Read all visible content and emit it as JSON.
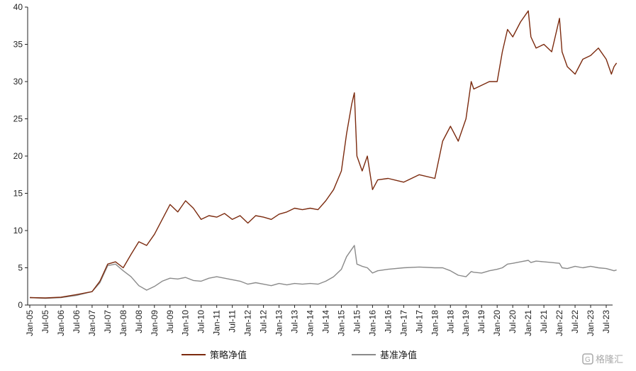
{
  "chart_data": {
    "type": "line",
    "title": "",
    "xlabel": "",
    "ylabel": "",
    "ylim": [
      0,
      40
    ],
    "yticks": [
      0,
      5,
      10,
      15,
      20,
      25,
      30,
      35,
      40
    ],
    "x_tick_labels": [
      "Jan-05",
      "Jul-05",
      "Jan-06",
      "Jul-06",
      "Jan-07",
      "Jul-07",
      "Jan-08",
      "Jul-08",
      "Jan-09",
      "Jul-09",
      "Jan-10",
      "Jul-10",
      "Jan-11",
      "Jul-11",
      "Jan-12",
      "Jul-12",
      "Jan-13",
      "Jul-13",
      "Jan-14",
      "Jul-14",
      "Jan-15",
      "Jul-15",
      "Jan-16",
      "Jul-16",
      "Jan-17",
      "Jul-17",
      "Jan-18",
      "Jul-18",
      "Jan-19",
      "Jul-19",
      "Jan-20",
      "Jul-20",
      "Jan-21",
      "Jul-21",
      "Jan-22",
      "Jul-22",
      "Jan-23",
      "Jul-23"
    ],
    "grid": false,
    "legend_position": "bottom",
    "x_dates": [
      "2005-01",
      "2005-07",
      "2006-01",
      "2006-07",
      "2007-01",
      "2007-04",
      "2007-07",
      "2007-10",
      "2008-01",
      "2008-04",
      "2008-07",
      "2008-10",
      "2009-01",
      "2009-04",
      "2009-07",
      "2009-10",
      "2010-01",
      "2010-04",
      "2010-07",
      "2010-10",
      "2011-01",
      "2011-04",
      "2011-07",
      "2011-10",
      "2012-01",
      "2012-04",
      "2012-07",
      "2012-10",
      "2013-01",
      "2013-04",
      "2013-07",
      "2013-10",
      "2014-01",
      "2014-04",
      "2014-07",
      "2014-10",
      "2015-01",
      "2015-03",
      "2015-05",
      "2015-06",
      "2015-07",
      "2015-09",
      "2015-11",
      "2016-01",
      "2016-03",
      "2016-07",
      "2017-01",
      "2017-07",
      "2018-01",
      "2018-04",
      "2018-07",
      "2018-10",
      "2019-01",
      "2019-03",
      "2019-04",
      "2019-07",
      "2019-10",
      "2020-01",
      "2020-03",
      "2020-05",
      "2020-07",
      "2020-10",
      "2021-01",
      "2021-02",
      "2021-04",
      "2021-07",
      "2021-10",
      "2022-01",
      "2022-02",
      "2022-04",
      "2022-07",
      "2022-10",
      "2023-01",
      "2023-04",
      "2023-07",
      "2023-09",
      "2023-10",
      "2023-11"
    ],
    "series": [
      {
        "name": "策略净值",
        "color": "#7b2a0e",
        "values": [
          1.0,
          0.95,
          1.05,
          1.4,
          1.8,
          3.2,
          5.5,
          5.8,
          5.0,
          6.8,
          8.5,
          8.0,
          9.5,
          11.5,
          13.5,
          12.5,
          14.0,
          13.0,
          11.5,
          12.0,
          11.8,
          12.3,
          11.5,
          12.0,
          11.0,
          12.0,
          11.8,
          11.5,
          12.2,
          12.5,
          13.0,
          12.8,
          13.0,
          12.8,
          14.0,
          15.5,
          18.0,
          23.0,
          27.0,
          28.5,
          20.0,
          18.0,
          20.0,
          15.5,
          16.8,
          17.0,
          16.5,
          17.5,
          17.0,
          22.0,
          24.0,
          22.0,
          25.0,
          30.0,
          29.0,
          29.5,
          30.0,
          30.0,
          34.0,
          37.0,
          36.0,
          38.0,
          39.5,
          36.0,
          34.5,
          35.0,
          34.0,
          38.5,
          34.0,
          32.0,
          31.0,
          33.0,
          33.5,
          34.5,
          33.0,
          31.0,
          32.0,
          32.5
        ]
      },
      {
        "name": "基准净值",
        "color": "#8a8a8a",
        "values": [
          1.0,
          0.9,
          1.0,
          1.3,
          1.8,
          3.0,
          5.3,
          5.5,
          4.6,
          3.8,
          2.6,
          2.0,
          2.5,
          3.2,
          3.6,
          3.5,
          3.7,
          3.3,
          3.2,
          3.6,
          3.8,
          3.6,
          3.4,
          3.2,
          2.8,
          3.0,
          2.8,
          2.6,
          2.9,
          2.7,
          2.9,
          2.8,
          2.9,
          2.8,
          3.2,
          3.8,
          4.8,
          6.5,
          7.5,
          8.0,
          5.5,
          5.2,
          5.0,
          4.3,
          4.6,
          4.8,
          5.0,
          5.1,
          5.0,
          5.0,
          4.6,
          4.0,
          3.8,
          4.5,
          4.4,
          4.3,
          4.6,
          4.8,
          5.0,
          5.5,
          5.6,
          5.8,
          6.0,
          5.7,
          5.9,
          5.8,
          5.7,
          5.6,
          5.0,
          4.9,
          5.2,
          5.0,
          5.2,
          5.0,
          4.9,
          4.7,
          4.6,
          4.7
        ]
      }
    ]
  },
  "watermark": {
    "text": "格隆汇"
  }
}
